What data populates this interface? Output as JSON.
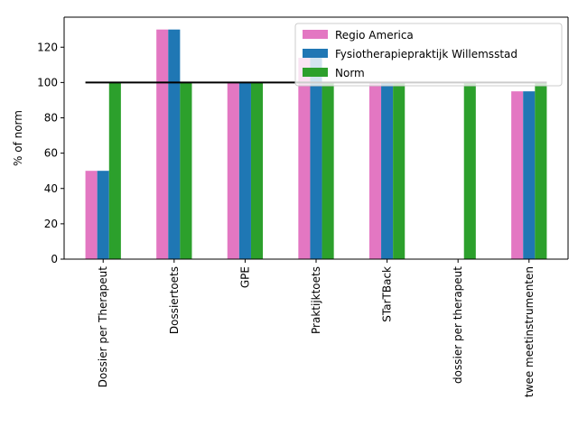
{
  "chart_data": {
    "type": "bar",
    "title": "",
    "xlabel": "",
    "ylabel": "% of norm",
    "ylim": [
      0,
      137
    ],
    "yticks": [
      0,
      20,
      40,
      60,
      80,
      100,
      120
    ],
    "categories": [
      "Dossier per Therapeut",
      "Dossiertoets",
      "GPE",
      "Praktijktoets",
      "STarTBack",
      "dossier per therapeut",
      "twee meetinstrumenten"
    ],
    "series": [
      {
        "name": "Regio America",
        "color": "#e377c2",
        "values": [
          50,
          130,
          100,
          114,
          100,
          null,
          95
        ]
      },
      {
        "name": "Fysiotherapiepraktijk Willemsstad",
        "color": "#1f77b4",
        "values": [
          50,
          130,
          100,
          114,
          100,
          null,
          95
        ]
      },
      {
        "name": "Norm",
        "color": "#2ca02c",
        "values": [
          100,
          100,
          100,
          100,
          100,
          100,
          100
        ]
      }
    ],
    "reference_line": {
      "value": 100,
      "from_category": 0,
      "to_category": 6,
      "color": "#000000"
    },
    "legend": {
      "placement": "top-right"
    },
    "grid": false
  }
}
